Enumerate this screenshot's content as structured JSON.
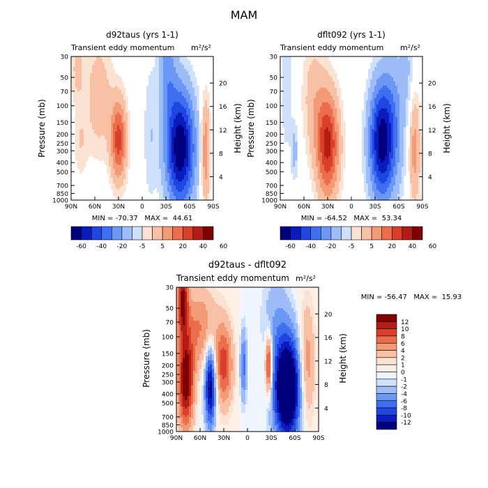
{
  "season": "MAM",
  "chart_data": [
    {
      "type": "heatmap",
      "title": "d92taus (yrs 1-1)",
      "subtitle": "Transient eddy momentum",
      "units": "m²/s²",
      "xlabel": "",
      "ylabel": "Pressure (mb)",
      "ylabel_right": "Height (km)",
      "x_ticks": [
        "90N",
        "60N",
        "30N",
        "0",
        "30S",
        "60S",
        "90S"
      ],
      "y_ticks": [
        "30",
        "50",
        "70",
        "100",
        "150",
        "200",
        "250",
        "300",
        "400",
        "500",
        "700",
        "850",
        "1000"
      ],
      "y_ticks_right": [
        "20",
        "16",
        "12",
        "8",
        "4"
      ],
      "stats": "MIN = -70.37   MAX =  44.61",
      "min": -70.37,
      "max": 44.61,
      "colorbar_levels": [
        "-60",
        "-40",
        "-20",
        "-5",
        "5",
        "20",
        "40",
        "60"
      ],
      "features": [
        {
          "lat": -48,
          "p": 280,
          "value": -70,
          "sx": 13,
          "sy": 1.0
        },
        {
          "lat": 30,
          "p": 230,
          "value": 44,
          "sx": 7,
          "sy": 0.7
        },
        {
          "lat": -80,
          "p": 300,
          "value": 30,
          "sx": 4,
          "sy": 0.9
        },
        {
          "lat": 55,
          "p": 80,
          "value": 16,
          "sx": 12,
          "sy": 1.0
        },
        {
          "lat": 82,
          "p": 40,
          "value": 12,
          "sx": 6,
          "sy": 0.6
        },
        {
          "lat": -32,
          "p": 40,
          "value": -22,
          "sx": 8,
          "sy": 0.8
        },
        {
          "lat": 78,
          "p": 250,
          "value": 9,
          "sx": 6,
          "sy": 0.6
        },
        {
          "lat": -10,
          "p": 200,
          "value": -9,
          "sx": 6,
          "sy": 1.2
        }
      ]
    },
    {
      "type": "heatmap",
      "title": "dflt092 (yrs 1-1)",
      "subtitle": "Transient eddy momentum",
      "units": "m²/s²",
      "xlabel": "",
      "ylabel": "Pressure (mb)",
      "ylabel_right": "Height (km)",
      "x_ticks": [
        "90N",
        "60N",
        "30N",
        "0",
        "30S",
        "60S",
        "90S"
      ],
      "y_ticks": [
        "30",
        "50",
        "70",
        "100",
        "150",
        "200",
        "250",
        "300",
        "400",
        "500",
        "700",
        "850",
        "1000"
      ],
      "y_ticks_right": [
        "20",
        "16",
        "12",
        "8",
        "4"
      ],
      "stats": "MIN = -64.52   MAX =  53.34",
      "min": -64.52,
      "max": 53.34,
      "colorbar_levels": [
        "-60",
        "-40",
        "-20",
        "-5",
        "5",
        "20",
        "40",
        "60"
      ],
      "features": [
        {
          "lat": -38,
          "p": 240,
          "value": -64,
          "sx": 11,
          "sy": 1.0
        },
        {
          "lat": 30,
          "p": 260,
          "value": 53,
          "sx": 10,
          "sy": 0.9
        },
        {
          "lat": -80,
          "p": 300,
          "value": 25,
          "sx": 5,
          "sy": 0.9
        },
        {
          "lat": 48,
          "p": 80,
          "value": 14,
          "sx": 10,
          "sy": 1.0
        },
        {
          "lat": 72,
          "p": 300,
          "value": -14,
          "sx": 3,
          "sy": 0.5
        },
        {
          "lat": -55,
          "p": 150,
          "value": -18,
          "sx": 10,
          "sy": 1.2
        },
        {
          "lat": 82,
          "p": 60,
          "value": -10,
          "sx": 5,
          "sy": 1.2
        },
        {
          "lat": -70,
          "p": 40,
          "value": -10,
          "sx": 6,
          "sy": 0.7
        }
      ]
    },
    {
      "type": "heatmap",
      "title": "d92taus - dflt092",
      "subtitle": "Transient eddy momentum",
      "units": "m²/s²",
      "xlabel": "",
      "ylabel": "Pressure (mb)",
      "ylabel_right": "Height (km)",
      "x_ticks": [
        "90N",
        "60N",
        "30N",
        "0",
        "30S",
        "60S",
        "90S"
      ],
      "y_ticks": [
        "30",
        "50",
        "70",
        "100",
        "150",
        "200",
        "250",
        "300",
        "400",
        "500",
        "700",
        "850",
        "1000"
      ],
      "y_ticks_right": [
        "20",
        "16",
        "12",
        "8",
        "4"
      ],
      "stats": "MIN = -56.47   MAX =  15.93",
      "min": -56.47,
      "max": 15.93,
      "colorbar_levels": [
        "12",
        "10",
        "8",
        "6",
        "4",
        "2",
        "1",
        "0",
        "-1",
        "-2",
        "-4",
        "-6",
        "-8",
        "-10",
        "-12"
      ],
      "features": [
        {
          "lat": -50,
          "p": 350,
          "value": -20,
          "sx": 12,
          "sy": 0.9
        },
        {
          "lat": 47,
          "p": 330,
          "value": -14,
          "sx": 5,
          "sy": 0.7
        },
        {
          "lat": 78,
          "p": 300,
          "value": 14,
          "sx": 7,
          "sy": 0.8
        },
        {
          "lat": 82,
          "p": 40,
          "value": 12,
          "sx": 5,
          "sy": 0.6
        },
        {
          "lat": 30,
          "p": 200,
          "value": 9,
          "sx": 8,
          "sy": 0.7
        },
        {
          "lat": -27,
          "p": 200,
          "value": 12,
          "sx": 3,
          "sy": 0.5
        },
        {
          "lat": -75,
          "p": 200,
          "value": 6,
          "sx": 7,
          "sy": 1.0
        },
        {
          "lat": 5,
          "p": 200,
          "value": -7,
          "sx": 3,
          "sy": 0.6
        },
        {
          "lat": -35,
          "p": 60,
          "value": -3,
          "sx": 12,
          "sy": 0.8
        },
        {
          "lat": 60,
          "p": 80,
          "value": 6,
          "sx": 15,
          "sy": 0.7
        }
      ]
    }
  ],
  "palettes": {
    "top": [
      "#00007f",
      "#0a1bbf",
      "#1f46e0",
      "#3f6ff0",
      "#6b97f5",
      "#9dbcf8",
      "#cfe0fb",
      "#fbe3d3",
      "#f8c0a4",
      "#f39a76",
      "#ec6d4c",
      "#d8402a",
      "#b31c14",
      "#7f0000"
    ],
    "bottom": [
      "#00007f",
      "#0a1bbf",
      "#1f46e0",
      "#3f6ff0",
      "#6b97f5",
      "#9dbcf8",
      "#cfe0fb",
      "#eef5ff",
      "#fff0e6",
      "#fbe3d3",
      "#f8c0a4",
      "#f39a76",
      "#ec6d4c",
      "#d8402a",
      "#b31c14",
      "#7f0000"
    ]
  }
}
